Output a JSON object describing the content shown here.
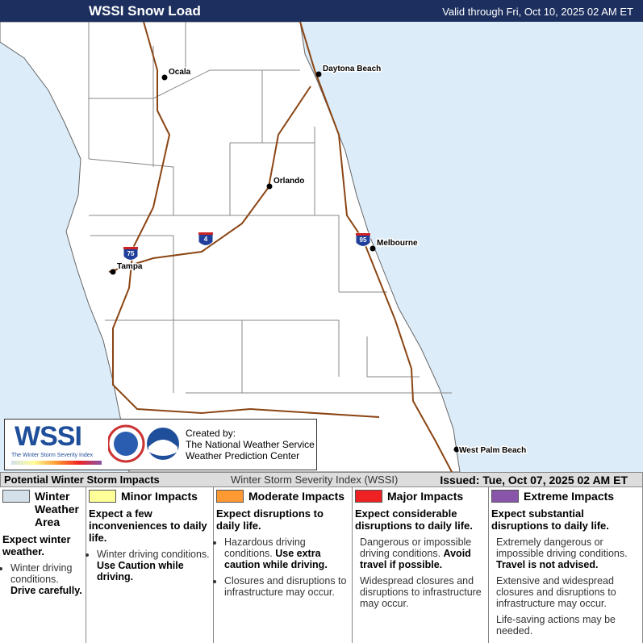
{
  "header": {
    "title": "WSSI Snow Load",
    "valid": "Valid through Fri, Oct 10, 2025 02 AM ET"
  },
  "map": {
    "cities": [
      "Ocala",
      "Daytona Beach",
      "Orlando",
      "Melbourne",
      "Tampa",
      "West Palm Beach"
    ],
    "shields": [
      "75",
      "4",
      "95"
    ]
  },
  "logo": {
    "wssi": "WSSI",
    "tagline": "The Winter Storm Severity Index",
    "created": "Created by:",
    "org1": "The National Weather Service",
    "org2": "Weather Prediction Center"
  },
  "legend_bar": {
    "left": "Potential Winter Storm Impacts",
    "center": "Winter Storm Severity Index (WSSI)",
    "right": "Issued: Tue, Oct 07, 2025 02 AM ET"
  },
  "columns": [
    {
      "title": "Winter Weather Area",
      "color": "#d3e0ea",
      "summary": "Expect winter weather.",
      "bulleted": true,
      "bullets": [
        {
          "text": "Winter driving conditions.",
          "bold": "Drive carefully."
        }
      ]
    },
    {
      "title": "Minor Impacts",
      "color": "#ffff99",
      "summary": "Expect a few inconveniences to daily life.",
      "bulleted": true,
      "bullets": [
        {
          "text": "Winter driving conditions.",
          "bold": "Use Caution while driving."
        }
      ]
    },
    {
      "title": "Moderate Impacts",
      "color": "#ff9933",
      "summary": "Expect disruptions to daily life.",
      "bulleted": true,
      "bullets": [
        {
          "text": "Hazardous driving conditions.",
          "bold": "Use extra caution while driving."
        },
        {
          "text": "Closures and disruptions to infrastructure may occur."
        }
      ]
    },
    {
      "title": "Major Impacts",
      "color": "#ee2222",
      "summary": "Expect considerable disruptions to daily life.",
      "bulleted": false,
      "bullets": [
        {
          "text": "Dangerous or impossible driving conditions.",
          "bold": "Avoid travel if possible."
        },
        {
          "text": "Widespread closures and disruptions to infrastructure may occur."
        }
      ]
    },
    {
      "title": "Extreme Impacts",
      "color": "#8855aa",
      "summary": "Expect substantial disruptions to daily life.",
      "bulleted": false,
      "bullets": [
        {
          "text": "Extremely dangerous or impossible driving conditions.",
          "bold": "Travel is not advised."
        },
        {
          "text": "Extensive and widespread closures and disruptions to infrastructure may occur."
        },
        {
          "text": "Life-saving actions may be needed."
        }
      ]
    }
  ]
}
